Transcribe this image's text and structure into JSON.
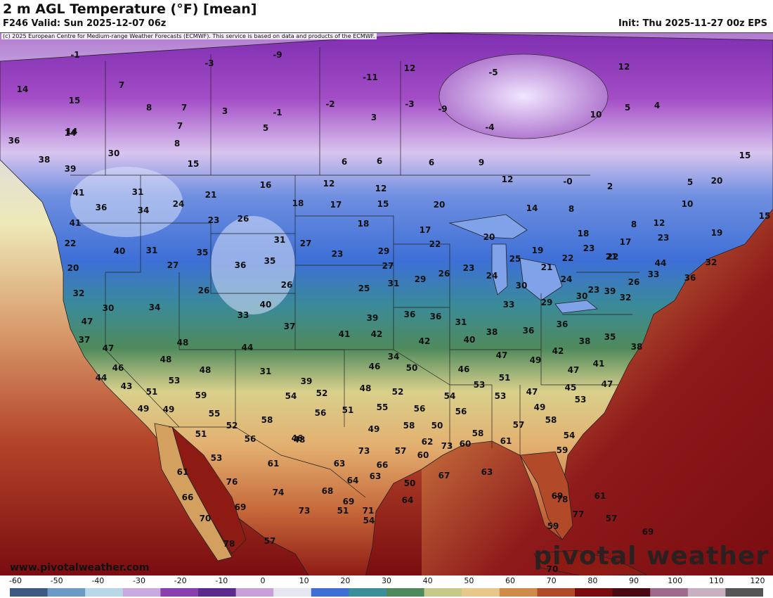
{
  "header": {
    "title": "2 m AGL Temperature (°F) [mean]",
    "valid": "F246 Valid: Sun 2025-12-07 06z",
    "init": "Init: Thu 2025-11-27 00z EPS"
  },
  "map": {
    "copyright": "(c) 2025 European Centre for Medium-range Weather Forecasts (ECMWF). This service is based on data and products of the ECMWF.",
    "website": "www.pivotalweather.com",
    "brand": "pivotal weather",
    "labels": [
      "-1",
      "-3",
      "-9",
      "-11",
      "12",
      "-5",
      "12",
      "14",
      "7",
      "8",
      "7",
      "3",
      "-1",
      "-2",
      "-3",
      "-9",
      "10",
      "5",
      "4",
      "15",
      "7",
      "5",
      "3",
      "-4",
      "14",
      "8",
      "15",
      "14",
      "30",
      "36",
      "38",
      "39",
      "15",
      "6",
      "6",
      "6",
      "9",
      "12",
      "-0",
      "2",
      "5",
      "20",
      "15",
      "41",
      "31",
      "21",
      "16",
      "12",
      "12",
      "8",
      "10",
      "36",
      "34",
      "24",
      "18",
      "17",
      "15",
      "20",
      "14",
      "8",
      "12",
      "41",
      "23",
      "26",
      "18",
      "17",
      "20",
      "18",
      "17",
      "23",
      "19",
      "22",
      "40",
      "31",
      "35",
      "31",
      "27",
      "29",
      "22",
      "19",
      "23",
      "21",
      "20",
      "27",
      "36",
      "35",
      "23",
      "27",
      "29",
      "26",
      "23",
      "24",
      "25",
      "21",
      "22",
      "22",
      "44",
      "36",
      "32",
      "32",
      "26",
      "26",
      "25",
      "31",
      "30",
      "24",
      "23",
      "26",
      "33",
      "30",
      "34",
      "40",
      "39",
      "36",
      "36",
      "31",
      "33",
      "29",
      "30",
      "39",
      "47",
      "33",
      "37",
      "41",
      "42",
      "42",
      "40",
      "38",
      "36",
      "36",
      "32",
      "37",
      "47",
      "48",
      "44",
      "34",
      "47",
      "42",
      "38",
      "35",
      "38",
      "46",
      "48",
      "48",
      "31",
      "39",
      "46",
      "50",
      "46",
      "49",
      "47",
      "41",
      "44",
      "43",
      "51",
      "53",
      "59",
      "54",
      "52",
      "48",
      "52",
      "54",
      "53",
      "51",
      "47",
      "45",
      "47",
      "49",
      "49",
      "55",
      "56",
      "51",
      "55",
      "56",
      "56",
      "53",
      "49",
      "53",
      "51",
      "52",
      "58",
      "48",
      "49",
      "58",
      "50",
      "58",
      "57",
      "58",
      "54",
      "56",
      "46",
      "57",
      "62",
      "60",
      "61",
      "59",
      "61",
      "53",
      "61",
      "63",
      "66",
      "60",
      "73",
      "73",
      "64",
      "63",
      "50",
      "67",
      "63",
      "66",
      "68",
      "74",
      "69",
      "76",
      "69",
      "71",
      "64",
      "61",
      "69",
      "59",
      "77",
      "78",
      "70",
      "73",
      "51",
      "54",
      "57",
      "69",
      "70",
      "78",
      "57"
    ],
    "colors": {
      "ocean_cold": "#5a2a8c",
      "ocean_warm": "#7a0c10",
      "land_cool": "#3d6fd6",
      "land_warm": "#e8c78a"
    }
  },
  "colorbar": {
    "ticks": [
      "-60",
      "-50",
      "-40",
      "-30",
      "-20",
      "-10",
      "0",
      "10",
      "20",
      "30",
      "40",
      "50",
      "60",
      "70",
      "80",
      "90",
      "100",
      "110",
      "120"
    ],
    "stops": [
      "#3d5a80",
      "#6b9ac4",
      "#b8d8e8",
      "#c9a9e0",
      "#8a3fb0",
      "#5a2a8c",
      "#c8a0d8",
      "#e6e6f0",
      "#3d6fd6",
      "#3a8f9a",
      "#4f8a5c",
      "#c7c98a",
      "#e8c78a",
      "#d08a4a",
      "#b24a2a",
      "#7a0c10",
      "#4a0a14",
      "#a06a8a",
      "#c8b0c0",
      "#555555"
    ]
  }
}
